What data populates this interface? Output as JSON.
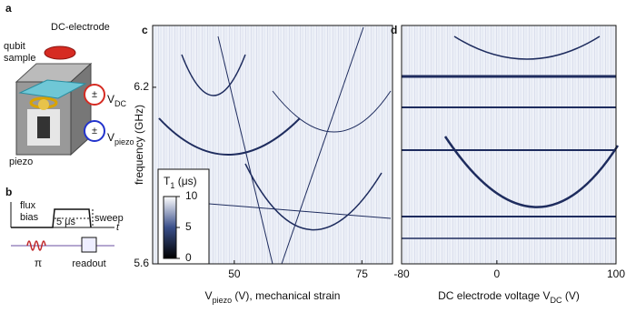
{
  "panels": {
    "a": {
      "letter": "a",
      "qubit_sample": [
        "qubit",
        "sample"
      ],
      "dc_electrode": "DC-electrode",
      "plus_minus": "±",
      "v_dc": [
        {
          "text": "V",
          "sub": false
        },
        {
          "text": "DC",
          "sub": true
        }
      ],
      "v_piezo": [
        {
          "text": "V",
          "sub": false
        },
        {
          "text": "piezo",
          "sub": true
        }
      ],
      "piezo": "piezo"
    },
    "b": {
      "letter": "b",
      "flux_bias": [
        "flux",
        "bias"
      ],
      "duration": "5 μs",
      "sweep": "sweep",
      "time": "t",
      "pi": "π",
      "readout": "readout"
    }
  },
  "chart_data": [
    {
      "type": "heatmap",
      "panel": "c",
      "xlim": [
        34,
        81
      ],
      "xticks": [
        50,
        75
      ],
      "ylim": [
        5.6,
        6.41
      ],
      "yticks": [
        5.6,
        6.2
      ],
      "ylabel": "frequency (GHz)",
      "xlabel": [
        {
          "text": "V",
          "sub": false
        },
        {
          "text": "piezo",
          "sub": true
        },
        {
          "text": " (V), mechanical strain",
          "sub": false
        }
      ],
      "colorbar": {
        "label": [
          {
            "text": "T",
            "sub": false
          },
          {
            "text": "1",
            "sub": true
          },
          {
            "text": " (μs)",
            "sub": false
          }
        ],
        "clim": [
          0,
          10
        ],
        "ticks": [
          0,
          5,
          10
        ],
        "colors": [
          "#000000",
          "#3a4f8a",
          "#ffffff"
        ]
      }
    },
    {
      "type": "heatmap",
      "panel": "d",
      "xlim": [
        -80,
        100
      ],
      "xticks": [
        -80,
        0,
        100
      ],
      "xlabel": [
        {
          "text": "DC electrode voltage ",
          "sub": false
        },
        {
          "text": "V",
          "sub": false
        },
        {
          "text": "DC",
          "sub": true
        },
        {
          "text": " (V)",
          "sub": false
        }
      ]
    }
  ]
}
